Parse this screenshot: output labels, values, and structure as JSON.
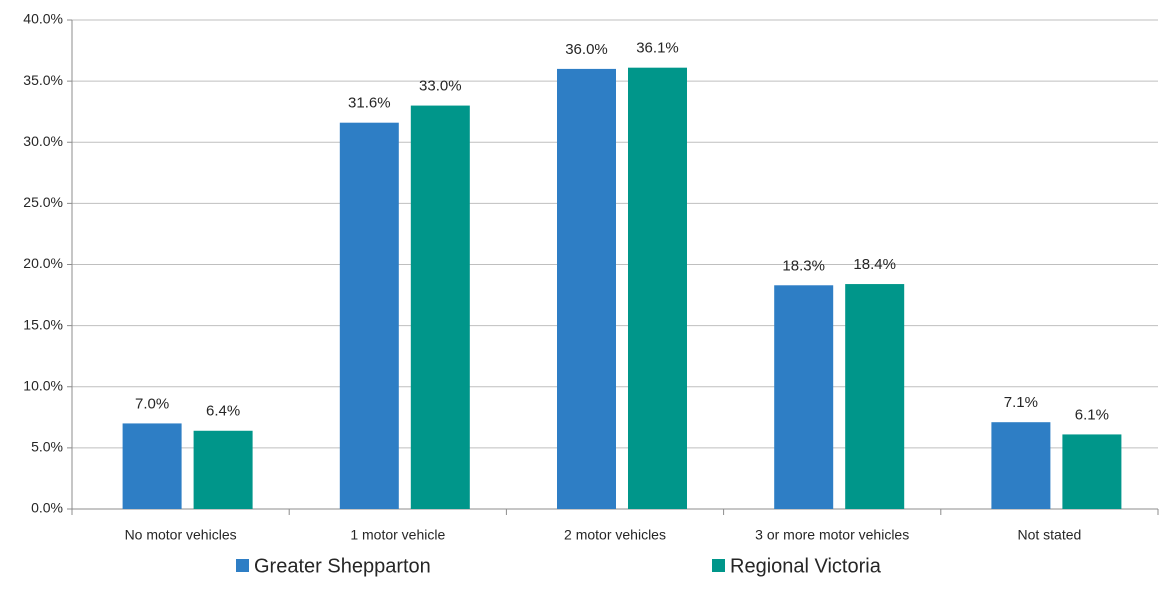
{
  "chart_data": {
    "type": "bar",
    "categories": [
      "No motor vehicles",
      "1 motor vehicle",
      "2 motor vehicles",
      "3 or more motor vehicles",
      "Not stated"
    ],
    "series": [
      {
        "name": "Greater Shepparton",
        "color": "#2e7ec5",
        "values": [
          7.0,
          31.6,
          36.0,
          18.3,
          7.1
        ],
        "value_labels": [
          "7.0%",
          "31.6%",
          "36.0%",
          "18.3%",
          "7.1%"
        ]
      },
      {
        "name": "Regional Victoria",
        "color": "#00968a",
        "values": [
          6.4,
          33.0,
          36.1,
          18.4,
          6.1
        ],
        "value_labels": [
          "6.4%",
          "33.0%",
          "36.1%",
          "18.4%",
          "6.1%"
        ]
      }
    ],
    "ylim": [
      0,
      40
    ],
    "yticks": [
      {
        "value": 0,
        "label": "0.0%"
      },
      {
        "value": 5,
        "label": "5.0%"
      },
      {
        "value": 10,
        "label": "10.0%"
      },
      {
        "value": 15,
        "label": "15.0%"
      },
      {
        "value": 20,
        "label": "20.0%"
      },
      {
        "value": 25,
        "label": "25.0%"
      },
      {
        "value": 30,
        "label": "30.0%"
      },
      {
        "value": 35,
        "label": "35.0%"
      },
      {
        "value": 40,
        "label": "40.0%"
      }
    ],
    "grid": true,
    "legend": "bottom"
  }
}
